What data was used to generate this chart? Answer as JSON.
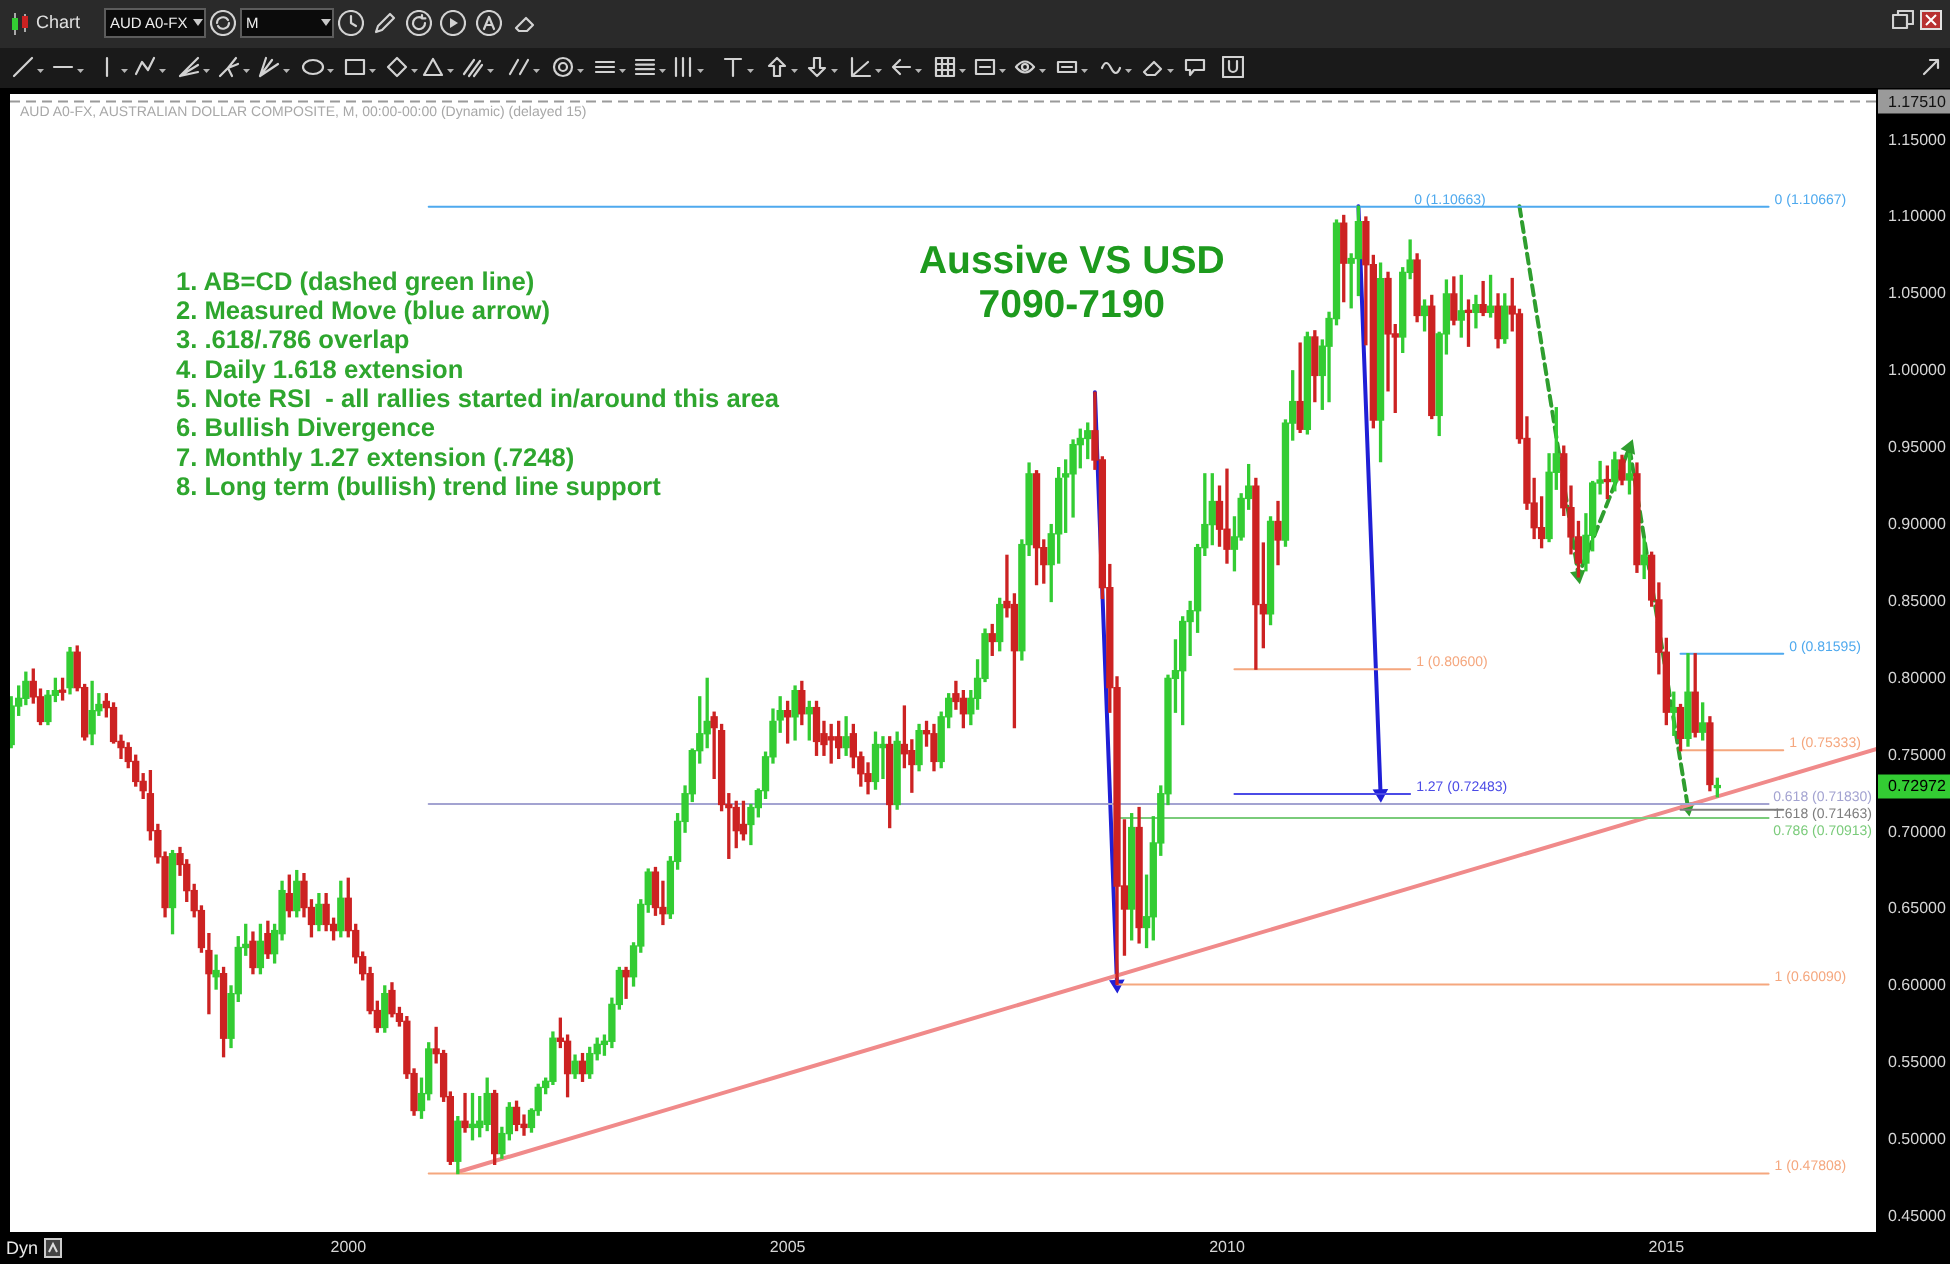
{
  "chart_data": {
    "type": "candlestick",
    "title": "Aussive VS USD",
    "subtitle": "7090-7190",
    "annotations": [
      "AUD A0-FX, AUSTRALIAN DOLLAR COMPOSITE, M, 00:00-00:00 (Dynamic) (delayed 15)",
      "1. AB=CD (dashed green line)",
      "2. Measured Move (blue arrow)",
      "3. .618/.786 overlap",
      "4. Daily 1.618 extension",
      "5. Note RSI  - all rallies started in/around this area",
      "6. Bullish Divergence",
      "7. Monthly 1.27 extension (.7248)",
      "8. Long term (bullish) trend line support",
      {
        "text": "0 (1.10663)",
        "x": "2012-02",
        "y": 1.10663
      },
      "Chart",
      "AUD A0-FX",
      "M",
      "Dyn"
    ],
    "x": [
      "1996-03",
      "1996-04",
      "1996-05",
      "1996-06",
      "1996-07",
      "1996-08",
      "1996-09",
      "1996-10",
      "1996-11",
      "1996-12",
      "1997-01",
      "1997-02",
      "1997-03",
      "1997-04",
      "1997-05",
      "1997-06",
      "1997-07",
      "1997-08",
      "1997-09",
      "1997-10",
      "1997-11",
      "1997-12",
      "1998-01",
      "1998-02",
      "1998-03",
      "1998-04",
      "1998-05",
      "1998-06",
      "1998-07",
      "1998-08",
      "1998-09",
      "1998-10",
      "1998-11",
      "1998-12",
      "1999-01",
      "1999-02",
      "1999-03",
      "1999-04",
      "1999-05",
      "1999-06",
      "1999-07",
      "1999-08",
      "1999-09",
      "1999-10",
      "1999-11",
      "1999-12",
      "2000-01",
      "2000-02",
      "2000-03",
      "2000-04",
      "2000-05",
      "2000-06",
      "2000-07",
      "2000-08",
      "2000-09",
      "2000-10",
      "2000-11",
      "2000-12",
      "2001-01",
      "2001-02",
      "2001-03",
      "2001-04",
      "2001-05",
      "2001-06",
      "2001-07",
      "2001-08",
      "2001-09",
      "2001-10",
      "2001-11",
      "2001-12",
      "2002-01",
      "2002-02",
      "2002-03",
      "2002-04",
      "2002-05",
      "2002-06",
      "2002-07",
      "2002-08",
      "2002-09",
      "2002-10",
      "2002-11",
      "2002-12",
      "2003-01",
      "2003-02",
      "2003-03",
      "2003-04",
      "2003-05",
      "2003-06",
      "2003-07",
      "2003-08",
      "2003-09",
      "2003-10",
      "2003-11",
      "2003-12",
      "2004-01",
      "2004-02",
      "2004-03",
      "2004-04",
      "2004-05",
      "2004-06",
      "2004-07",
      "2004-08",
      "2004-09",
      "2004-10",
      "2004-11",
      "2004-12",
      "2005-01",
      "2005-02",
      "2005-03",
      "2005-04",
      "2005-05",
      "2005-06",
      "2005-07",
      "2005-08",
      "2005-09",
      "2005-10",
      "2005-11",
      "2005-12",
      "2006-01",
      "2006-02",
      "2006-03",
      "2006-04",
      "2006-05",
      "2006-06",
      "2006-07",
      "2006-08",
      "2006-09",
      "2006-10",
      "2006-11",
      "2006-12",
      "2007-01",
      "2007-02",
      "2007-03",
      "2007-04",
      "2007-05",
      "2007-06",
      "2007-07",
      "2007-08",
      "2007-09",
      "2007-10",
      "2007-11",
      "2007-12",
      "2008-01",
      "2008-02",
      "2008-03",
      "2008-04",
      "2008-05",
      "2008-06",
      "2008-07",
      "2008-08",
      "2008-09",
      "2008-10",
      "2008-11",
      "2008-12",
      "2009-01",
      "2009-02",
      "2009-03",
      "2009-04",
      "2009-05",
      "2009-06",
      "2009-07",
      "2009-08",
      "2009-09",
      "2009-10",
      "2009-11",
      "2009-12",
      "2010-01",
      "2010-02",
      "2010-03",
      "2010-04",
      "2010-05",
      "2010-06",
      "2010-07",
      "2010-08",
      "2010-09",
      "2010-10",
      "2010-11",
      "2010-12",
      "2011-01",
      "2011-02",
      "2011-03",
      "2011-04",
      "2011-05",
      "2011-06",
      "2011-07",
      "2011-08",
      "2011-09",
      "2011-10",
      "2011-11",
      "2011-12",
      "2012-01",
      "2012-02",
      "2012-03",
      "2012-04",
      "2012-05",
      "2012-06",
      "2012-07",
      "2012-08",
      "2012-09",
      "2012-10",
      "2012-11",
      "2012-12",
      "2013-01",
      "2013-02",
      "2013-03",
      "2013-04",
      "2013-05",
      "2013-06",
      "2013-07",
      "2013-08",
      "2013-09",
      "2013-10",
      "2013-11",
      "2013-12",
      "2014-01",
      "2014-02",
      "2014-03",
      "2014-04",
      "2014-05",
      "2014-06",
      "2014-07",
      "2014-08",
      "2014-09",
      "2014-10",
      "2014-11",
      "2014-12",
      "2015-01",
      "2015-02",
      "2015-03",
      "2015-04",
      "2015-05",
      "2015-06",
      "2015-07",
      "2015-08"
    ],
    "ohlc": [
      [
        0.757,
        0.788,
        0.755,
        0.782
      ],
      [
        0.782,
        0.795,
        0.776,
        0.787
      ],
      [
        0.787,
        0.804,
        0.783,
        0.798
      ],
      [
        0.798,
        0.806,
        0.784,
        0.788
      ],
      [
        0.788,
        0.793,
        0.77,
        0.772
      ],
      [
        0.772,
        0.792,
        0.77,
        0.789
      ],
      [
        0.789,
        0.8,
        0.785,
        0.792
      ],
      [
        0.792,
        0.8,
        0.786,
        0.791
      ],
      [
        0.794,
        0.82,
        0.79,
        0.817
      ],
      [
        0.817,
        0.821,
        0.792,
        0.794
      ],
      [
        0.794,
        0.796,
        0.76,
        0.762
      ],
      [
        0.764,
        0.798,
        0.757,
        0.779
      ],
      [
        0.779,
        0.79,
        0.776,
        0.783
      ],
      [
        0.785,
        0.79,
        0.775,
        0.781
      ],
      [
        0.781,
        0.784,
        0.758,
        0.759
      ],
      [
        0.759,
        0.763,
        0.748,
        0.755
      ],
      [
        0.755,
        0.758,
        0.742,
        0.746
      ],
      [
        0.746,
        0.75,
        0.73,
        0.733
      ],
      [
        0.733,
        0.738,
        0.722,
        0.727
      ],
      [
        0.725,
        0.74,
        0.695,
        0.701
      ],
      [
        0.701,
        0.705,
        0.68,
        0.684
      ],
      [
        0.684,
        0.687,
        0.645,
        0.651
      ],
      [
        0.651,
        0.688,
        0.634,
        0.686
      ],
      [
        0.686,
        0.69,
        0.672,
        0.679
      ],
      [
        0.679,
        0.682,
        0.655,
        0.662
      ],
      [
        0.662,
        0.666,
        0.645,
        0.649
      ],
      [
        0.649,
        0.652,
        0.622,
        0.625
      ],
      [
        0.623,
        0.634,
        0.582,
        0.608
      ],
      [
        0.606,
        0.62,
        0.598,
        0.61
      ],
      [
        0.608,
        0.612,
        0.554,
        0.566
      ],
      [
        0.566,
        0.6,
        0.56,
        0.595
      ],
      [
        0.595,
        0.632,
        0.59,
        0.625
      ],
      [
        0.625,
        0.64,
        0.62,
        0.627
      ],
      [
        0.629,
        0.635,
        0.608,
        0.612
      ],
      [
        0.612,
        0.64,
        0.608,
        0.629
      ],
      [
        0.634,
        0.642,
        0.618,
        0.621
      ],
      [
        0.621,
        0.64,
        0.615,
        0.636
      ],
      [
        0.634,
        0.668,
        0.63,
        0.662
      ],
      [
        0.66,
        0.672,
        0.645,
        0.649
      ],
      [
        0.649,
        0.675,
        0.645,
        0.668
      ],
      [
        0.668,
        0.673,
        0.645,
        0.651
      ],
      [
        0.651,
        0.656,
        0.632,
        0.64
      ],
      [
        0.64,
        0.66,
        0.636,
        0.653
      ],
      [
        0.653,
        0.66,
        0.636,
        0.64
      ],
      [
        0.64,
        0.644,
        0.63,
        0.636
      ],
      [
        0.636,
        0.668,
        0.632,
        0.657
      ],
      [
        0.657,
        0.67,
        0.632,
        0.636
      ],
      [
        0.636,
        0.64,
        0.615,
        0.619
      ],
      [
        0.619,
        0.622,
        0.604,
        0.608
      ],
      [
        0.608,
        0.612,
        0.582,
        0.584
      ],
      [
        0.584,
        0.59,
        0.57,
        0.573
      ],
      [
        0.573,
        0.6,
        0.57,
        0.595
      ],
      [
        0.597,
        0.602,
        0.58,
        0.582
      ],
      [
        0.582,
        0.586,
        0.574,
        0.577
      ],
      [
        0.577,
        0.58,
        0.54,
        0.543
      ],
      [
        0.543,
        0.546,
        0.516,
        0.519
      ],
      [
        0.519,
        0.54,
        0.514,
        0.53
      ],
      [
        0.53,
        0.563,
        0.526,
        0.559
      ],
      [
        0.559,
        0.573,
        0.55,
        0.556
      ],
      [
        0.556,
        0.558,
        0.525,
        0.528
      ],
      [
        0.528,
        0.531,
        0.484,
        0.486
      ],
      [
        0.486,
        0.515,
        0.478,
        0.512
      ],
      [
        0.512,
        0.53,
        0.505,
        0.508
      ],
      [
        0.508,
        0.53,
        0.5,
        0.51
      ],
      [
        0.508,
        0.528,
        0.502,
        0.512
      ],
      [
        0.51,
        0.54,
        0.506,
        0.53
      ],
      [
        0.53,
        0.532,
        0.484,
        0.491
      ],
      [
        0.491,
        0.508,
        0.488,
        0.504
      ],
      [
        0.504,
        0.524,
        0.5,
        0.521
      ],
      [
        0.521,
        0.525,
        0.506,
        0.51
      ],
      [
        0.51,
        0.516,
        0.503,
        0.508
      ],
      [
        0.508,
        0.52,
        0.505,
        0.519
      ],
      [
        0.519,
        0.536,
        0.516,
        0.534
      ],
      [
        0.534,
        0.54,
        0.53,
        0.538
      ],
      [
        0.538,
        0.57,
        0.536,
        0.566
      ],
      [
        0.566,
        0.579,
        0.56,
        0.564
      ],
      [
        0.564,
        0.568,
        0.528,
        0.543
      ],
      [
        0.543,
        0.555,
        0.54,
        0.551
      ],
      [
        0.551,
        0.556,
        0.538,
        0.543
      ],
      [
        0.543,
        0.56,
        0.54,
        0.556
      ],
      [
        0.556,
        0.566,
        0.552,
        0.562
      ],
      [
        0.562,
        0.568,
        0.555,
        0.564
      ],
      [
        0.564,
        0.592,
        0.56,
        0.588
      ],
      [
        0.588,
        0.612,
        0.585,
        0.61
      ],
      [
        0.61,
        0.612,
        0.592,
        0.606
      ],
      [
        0.606,
        0.628,
        0.6,
        0.626
      ],
      [
        0.626,
        0.656,
        0.622,
        0.653
      ],
      [
        0.653,
        0.676,
        0.648,
        0.674
      ],
      [
        0.674,
        0.677,
        0.646,
        0.651
      ],
      [
        0.651,
        0.668,
        0.64,
        0.647
      ],
      [
        0.647,
        0.684,
        0.644,
        0.681
      ],
      [
        0.681,
        0.712,
        0.676,
        0.707
      ],
      [
        0.707,
        0.73,
        0.7,
        0.725
      ],
      [
        0.725,
        0.754,
        0.72,
        0.753
      ],
      [
        0.753,
        0.788,
        0.745,
        0.764
      ],
      [
        0.764,
        0.8,
        0.755,
        0.772
      ],
      [
        0.775,
        0.778,
        0.735,
        0.768
      ],
      [
        0.766,
        0.77,
        0.714,
        0.718
      ],
      [
        0.718,
        0.725,
        0.683,
        0.716
      ],
      [
        0.716,
        0.72,
        0.69,
        0.701
      ],
      [
        0.705,
        0.72,
        0.695,
        0.699
      ],
      [
        0.705,
        0.718,
        0.692,
        0.716
      ],
      [
        0.716,
        0.728,
        0.71,
        0.727
      ],
      [
        0.727,
        0.752,
        0.722,
        0.749
      ],
      [
        0.749,
        0.78,
        0.745,
        0.772
      ],
      [
        0.773,
        0.788,
        0.765,
        0.779
      ],
      [
        0.779,
        0.785,
        0.758,
        0.775
      ],
      [
        0.775,
        0.795,
        0.76,
        0.792
      ],
      [
        0.792,
        0.798,
        0.77,
        0.777
      ],
      [
        0.777,
        0.785,
        0.76,
        0.781
      ],
      [
        0.781,
        0.785,
        0.75,
        0.759
      ],
      [
        0.764,
        0.772,
        0.75,
        0.757
      ],
      [
        0.762,
        0.77,
        0.745,
        0.76
      ],
      [
        0.762,
        0.772,
        0.748,
        0.755
      ],
      [
        0.755,
        0.775,
        0.75,
        0.762
      ],
      [
        0.764,
        0.77,
        0.742,
        0.749
      ],
      [
        0.749,
        0.752,
        0.73,
        0.738
      ],
      [
        0.738,
        0.745,
        0.725,
        0.733
      ],
      [
        0.733,
        0.765,
        0.728,
        0.757
      ],
      [
        0.755,
        0.762,
        0.735,
        0.757
      ],
      [
        0.757,
        0.762,
        0.703,
        0.718
      ],
      [
        0.718,
        0.765,
        0.715,
        0.759
      ],
      [
        0.757,
        0.782,
        0.742,
        0.751
      ],
      [
        0.753,
        0.76,
        0.726,
        0.744
      ],
      [
        0.744,
        0.77,
        0.74,
        0.766
      ],
      [
        0.766,
        0.772,
        0.756,
        0.764
      ],
      [
        0.764,
        0.77,
        0.74,
        0.746
      ],
      [
        0.746,
        0.778,
        0.742,
        0.775
      ],
      [
        0.775,
        0.79,
        0.768,
        0.787
      ],
      [
        0.79,
        0.798,
        0.78,
        0.785
      ],
      [
        0.787,
        0.792,
        0.768,
        0.777
      ],
      [
        0.777,
        0.792,
        0.77,
        0.787
      ],
      [
        0.787,
        0.812,
        0.78,
        0.8
      ],
      [
        0.8,
        0.832,
        0.798,
        0.829
      ],
      [
        0.829,
        0.835,
        0.815,
        0.824
      ],
      [
        0.824,
        0.852,
        0.818,
        0.848
      ],
      [
        0.85,
        0.88,
        0.84,
        0.846
      ],
      [
        0.848,
        0.855,
        0.768,
        0.818
      ],
      [
        0.818,
        0.89,
        0.812,
        0.887
      ],
      [
        0.887,
        0.94,
        0.88,
        0.933
      ],
      [
        0.933,
        0.935,
        0.861,
        0.885
      ],
      [
        0.885,
        0.89,
        0.862,
        0.874
      ],
      [
        0.874,
        0.9,
        0.85,
        0.894
      ],
      [
        0.894,
        0.937,
        0.875,
        0.93
      ],
      [
        0.931,
        0.942,
        0.895,
        0.933
      ],
      [
        0.933,
        0.955,
        0.905,
        0.952
      ],
      [
        0.952,
        0.962,
        0.937,
        0.956
      ],
      [
        0.956,
        0.966,
        0.943,
        0.961
      ],
      [
        0.961,
        0.986,
        0.936,
        0.942
      ],
      [
        0.942,
        0.944,
        0.852,
        0.859
      ],
      [
        0.859,
        0.874,
        0.778,
        0.794
      ],
      [
        0.794,
        0.801,
        0.601,
        0.665
      ],
      [
        0.665,
        0.708,
        0.62,
        0.65
      ],
      [
        0.65,
        0.712,
        0.63,
        0.703
      ],
      [
        0.703,
        0.716,
        0.628,
        0.638
      ],
      [
        0.638,
        0.672,
        0.625,
        0.645
      ],
      [
        0.645,
        0.71,
        0.63,
        0.693
      ],
      [
        0.693,
        0.73,
        0.685,
        0.725
      ],
      [
        0.725,
        0.802,
        0.718,
        0.8
      ],
      [
        0.8,
        0.825,
        0.778,
        0.805
      ],
      [
        0.805,
        0.84,
        0.77,
        0.837
      ],
      [
        0.837,
        0.85,
        0.815,
        0.844
      ],
      [
        0.844,
        0.887,
        0.83,
        0.885
      ],
      [
        0.885,
        0.933,
        0.88,
        0.9
      ],
      [
        0.9,
        0.933,
        0.887,
        0.915
      ],
      [
        0.915,
        0.925,
        0.886,
        0.897
      ],
      [
        0.897,
        0.936,
        0.875,
        0.884
      ],
      [
        0.884,
        0.905,
        0.87,
        0.892
      ],
      [
        0.892,
        0.92,
        0.89,
        0.917
      ],
      [
        0.917,
        0.939,
        0.91,
        0.925
      ],
      [
        0.925,
        0.93,
        0.806,
        0.848
      ],
      [
        0.848,
        0.888,
        0.82,
        0.842
      ],
      [
        0.842,
        0.905,
        0.835,
        0.902
      ],
      [
        0.902,
        0.915,
        0.874,
        0.89
      ],
      [
        0.89,
        0.968,
        0.886,
        0.966
      ],
      [
        0.966,
        1.0,
        0.955,
        0.98
      ],
      [
        0.98,
        1.018,
        0.96,
        0.962
      ],
      [
        0.962,
        1.025,
        0.959,
        1.022
      ],
      [
        1.022,
        1.026,
        0.98,
        0.997
      ],
      [
        0.997,
        1.02,
        0.975,
        1.016
      ],
      [
        1.016,
        1.038,
        0.98,
        1.034
      ],
      [
        1.034,
        1.098,
        1.03,
        1.096
      ],
      [
        1.096,
        1.101,
        1.045,
        1.07
      ],
      [
        1.07,
        1.076,
        1.041,
        1.073
      ],
      [
        1.073,
        1.107,
        1.049,
        1.097
      ],
      [
        1.097,
        1.1,
        1.017,
        1.069
      ],
      [
        1.069,
        1.075,
        0.963,
        0.968
      ],
      [
        0.968,
        1.07,
        0.941,
        1.06
      ],
      [
        1.06,
        1.064,
        0.987,
        1.024
      ],
      [
        1.024,
        1.03,
        0.973,
        1.022
      ],
      [
        1.022,
        1.067,
        1.012,
        1.064
      ],
      [
        1.064,
        1.085,
        1.06,
        1.072
      ],
      [
        1.072,
        1.076,
        1.032,
        1.036
      ],
      [
        1.036,
        1.046,
        1.026,
        1.042
      ],
      [
        1.042,
        1.049,
        0.969,
        0.971
      ],
      [
        0.971,
        1.025,
        0.958,
        1.024
      ],
      [
        1.024,
        1.059,
        1.011,
        1.05
      ],
      [
        1.05,
        1.061,
        1.03,
        1.033
      ],
      [
        1.033,
        1.062,
        1.022,
        1.039
      ],
      [
        1.039,
        1.046,
        1.016,
        1.038
      ],
      [
        1.038,
        1.049,
        1.028,
        1.043
      ],
      [
        1.043,
        1.058,
        1.036,
        1.038
      ],
      [
        1.038,
        1.062,
        1.035,
        1.042
      ],
      [
        1.042,
        1.05,
        1.015,
        1.021
      ],
      [
        1.021,
        1.05,
        1.018,
        1.042
      ],
      [
        1.042,
        1.06,
        1.026,
        1.037
      ],
      [
        1.037,
        1.04,
        0.953,
        0.956
      ],
      [
        0.956,
        0.97,
        0.91,
        0.914
      ],
      [
        0.914,
        0.93,
        0.891,
        0.898
      ],
      [
        0.898,
        0.918,
        0.885,
        0.891
      ],
      [
        0.891,
        0.946,
        0.889,
        0.934
      ],
      [
        0.934,
        0.976,
        0.923,
        0.946
      ],
      [
        0.946,
        0.951,
        0.906,
        0.911
      ],
      [
        0.911,
        0.925,
        0.881,
        0.892
      ],
      [
        0.892,
        0.902,
        0.866,
        0.875
      ],
      [
        0.875,
        0.907,
        0.87,
        0.893
      ],
      [
        0.893,
        0.928,
        0.883,
        0.927
      ],
      [
        0.927,
        0.941,
        0.92,
        0.929
      ],
      [
        0.929,
        0.938,
        0.917,
        0.928
      ],
      [
        0.928,
        0.947,
        0.922,
        0.942
      ],
      [
        0.942,
        0.945,
        0.926,
        0.929
      ],
      [
        0.929,
        0.946,
        0.92,
        0.933
      ],
      [
        0.933,
        0.94,
        0.869,
        0.874
      ],
      [
        0.874,
        0.891,
        0.865,
        0.88
      ],
      [
        0.88,
        0.882,
        0.847,
        0.851
      ],
      [
        0.851,
        0.862,
        0.803,
        0.817
      ],
      [
        0.817,
        0.826,
        0.77,
        0.778
      ],
      [
        0.778,
        0.791,
        0.763,
        0.781
      ],
      [
        0.781,
        0.783,
        0.753,
        0.761
      ],
      [
        0.761,
        0.816,
        0.756,
        0.791
      ],
      [
        0.791,
        0.816,
        0.762,
        0.765
      ],
      [
        0.765,
        0.784,
        0.76,
        0.771
      ],
      [
        0.771,
        0.775,
        0.727,
        0.731
      ],
      [
        0.729,
        0.735,
        0.723,
        0.72972
      ]
    ],
    "colors": [
      "#33cc33",
      "#33cc33",
      "#33cc33",
      "#cc2222",
      "#cc2222",
      "#33cc33",
      "#33cc33",
      "#cc2222",
      "#33cc33",
      "#cc2222",
      "#cc2222",
      "#33cc33",
      "#33cc33",
      "#cc2222",
      "#cc2222",
      "#cc2222",
      "#cc2222",
      "#cc2222",
      "#cc2222",
      "#cc2222",
      "#cc2222",
      "#cc2222",
      "#33cc33",
      "#cc2222",
      "#cc2222",
      "#cc2222",
      "#cc2222",
      "#cc2222",
      "#33cc33",
      "#cc2222",
      "#33cc33",
      "#33cc33",
      "#33cc33",
      "#cc2222",
      "#33cc33",
      "#cc2222",
      "#33cc33",
      "#33cc33",
      "#cc2222",
      "#33cc33",
      "#cc2222",
      "#cc2222",
      "#33cc33",
      "#cc2222",
      "#cc2222",
      "#33cc33",
      "#cc2222",
      "#cc2222",
      "#cc2222",
      "#cc2222",
      "#cc2222",
      "#33cc33",
      "#cc2222",
      "#cc2222",
      "#cc2222",
      "#cc2222",
      "#33cc33",
      "#33cc33",
      "#cc2222",
      "#cc2222",
      "#cc2222",
      "#33cc33",
      "#cc2222",
      "#33cc33",
      "#33cc33",
      "#33cc33",
      "#cc2222",
      "#33cc33",
      "#33cc33",
      "#cc2222",
      "#cc2222",
      "#33cc33",
      "#33cc33",
      "#33cc33",
      "#33cc33",
      "#cc2222",
      "#cc2222",
      "#33cc33",
      "#cc2222",
      "#33cc33",
      "#33cc33",
      "#33cc33",
      "#33cc33",
      "#33cc33",
      "#cc2222",
      "#33cc33",
      "#33cc33",
      "#33cc33",
      "#cc2222",
      "#cc2222",
      "#33cc33",
      "#33cc33",
      "#33cc33",
      "#33cc33",
      "#33cc33",
      "#33cc33",
      "#cc2222",
      "#cc2222",
      "#cc2222",
      "#cc2222",
      "#cc2222",
      "#33cc33",
      "#33cc33",
      "#33cc33",
      "#33cc33",
      "#33cc33",
      "#cc2222",
      "#33cc33",
      "#cc2222",
      "#33cc33",
      "#cc2222",
      "#cc2222",
      "#cc2222",
      "#cc2222",
      "#33cc33",
      "#cc2222",
      "#cc2222",
      "#cc2222",
      "#33cc33",
      "#33cc33",
      "#cc2222",
      "#33cc33",
      "#cc2222",
      "#cc2222",
      "#33cc33",
      "#cc2222",
      "#cc2222",
      "#33cc33",
      "#33cc33",
      "#cc2222",
      "#cc2222",
      "#33cc33",
      "#33cc33",
      "#33cc33",
      "#cc2222",
      "#33cc33",
      "#cc2222",
      "#cc2222",
      "#33cc33",
      "#33cc33",
      "#cc2222",
      "#cc2222",
      "#33cc33",
      "#33cc33",
      "#33cc33",
      "#33cc33",
      "#33cc33",
      "#33cc33",
      "#cc2222",
      "#cc2222",
      "#cc2222",
      "#cc2222",
      "#cc2222",
      "#33cc33",
      "#cc2222",
      "#33cc33",
      "#33cc33",
      "#33cc33",
      "#33cc33",
      "#33cc33",
      "#33cc33",
      "#33cc33",
      "#33cc33",
      "#33cc33",
      "#33cc33",
      "#cc2222",
      "#cc2222",
      "#33cc33",
      "#33cc33",
      "#33cc33",
      "#cc2222",
      "#cc2222",
      "#33cc33",
      "#cc2222",
      "#33cc33",
      "#33cc33",
      "#cc2222",
      "#33cc33",
      "#cc2222",
      "#33cc33",
      "#33cc33",
      "#33cc33",
      "#cc2222",
      "#33cc33",
      "#33cc33",
      "#cc2222",
      "#cc2222",
      "#33cc33",
      "#cc2222",
      "#cc2222",
      "#33cc33",
      "#33cc33",
      "#cc2222",
      "#33cc33",
      "#cc2222",
      "#33cc33",
      "#33cc33",
      "#cc2222",
      "#33cc33",
      "#cc2222",
      "#33cc33",
      "#cc2222",
      "#33cc33",
      "#cc2222",
      "#33cc33",
      "#cc2222",
      "#cc2222",
      "#cc2222",
      "#cc2222",
      "#cc2222",
      "#33cc33",
      "#33cc33",
      "#cc2222",
      "#cc2222",
      "#cc2222",
      "#33cc33",
      "#33cc33",
      "#33cc33",
      "#cc2222",
      "#33cc33",
      "#cc2222",
      "#33cc33",
      "#cc2222",
      "#33cc33",
      "#cc2222",
      "#cc2222",
      "#cc2222",
      "#33cc33",
      "#cc2222",
      "#33cc33",
      "#cc2222",
      "#33cc33",
      "#cc2222",
      "#33cc33"
    ],
    "series": [
      {
        "type": "line",
        "name": "0 (1.10667)",
        "x": [
          "2000-12",
          "2016-03"
        ],
        "values": [
          1.10667,
          1.10667
        ],
        "color": "#4ea9ee"
      },
      {
        "type": "line",
        "name": "0.618 (0.71830)",
        "x": [
          "2000-12",
          "2016-03"
        ],
        "values": [
          0.7183,
          0.7183
        ],
        "color": "#a3a3d1"
      },
      {
        "type": "line",
        "name": "1 (0.47808)",
        "x": [
          "2000-12",
          "2016-03"
        ],
        "values": [
          0.47808,
          0.47808
        ],
        "color": "#f5a77e"
      },
      {
        "type": "line",
        "name": "0.786 (0.70913)",
        "x": [
          "2008-10",
          "2016-03"
        ],
        "values": [
          0.70913,
          0.70913
        ],
        "color": "#7acb7a"
      },
      {
        "type": "line",
        "name": "1 (0.60090)",
        "x": [
          "2008-10",
          "2016-03"
        ],
        "values": [
          0.6009,
          0.6009
        ],
        "color": "#f5a77e"
      },
      {
        "type": "line",
        "name": "1 (0.80600)",
        "x": [
          "2010-02",
          "2012-02"
        ],
        "values": [
          0.806,
          0.806
        ],
        "color": "#f5a77e"
      },
      {
        "type": "line",
        "name": "1.27 (0.72483)",
        "x": [
          "2010-02",
          "2012-02"
        ],
        "values": [
          0.72483,
          0.72483
        ],
        "color": "#4b4be6"
      },
      {
        "type": "line",
        "name": "0 (0.81595)",
        "x": [
          "2015-03",
          "2016-05"
        ],
        "values": [
          0.81595,
          0.81595
        ],
        "color": "#4ea9ee"
      },
      {
        "type": "line",
        "name": "1 (0.75333)",
        "x": [
          "2015-03",
          "2016-05"
        ],
        "values": [
          0.75333,
          0.75333
        ],
        "color": "#f5a77e"
      },
      {
        "type": "line",
        "name": "1.618 (0.71463)",
        "x": [
          "2015-03",
          "2016-05"
        ],
        "values": [
          0.71463,
          0.71463
        ],
        "color": "#7d7d7d"
      },
      {
        "type": "line",
        "x": [
          "2001-04",
          "2017-05-22"
        ],
        "values": [
          0.479,
          0.754
        ],
        "color": "#f08a8a"
      },
      {
        "type": "line",
        "x": [
          "2008-07",
          "2008-10"
        ],
        "values": [
          0.986,
          0.601
        ],
        "color": "#1f1fd6",
        "marker": "triangle"
      },
      {
        "type": "line",
        "x": [
          "2011-07",
          "2011-10"
        ],
        "values": [
          1.107,
          0.725
        ],
        "color": "#1f1fd6",
        "marker": "triangle"
      },
      {
        "type": "line",
        "x": [
          "2013-05",
          "2014-01",
          "2014-08",
          "2015-04"
        ],
        "values": [
          1.107,
          0.867,
          0.95,
          0.716
        ],
        "color": "#2f9e2f",
        "line_style": "dashed",
        "marker": "triangle"
      }
    ],
    "ref_lines": [
      {
        "axis": "y",
        "value": 1.1751,
        "label": "1.17510",
        "color": "#9a9a9a",
        "line_style": "dashed"
      }
    ],
    "xlim": [
      "1996-02-25",
      "2017-05-22"
    ],
    "xticks": [
      "2000",
      "2005",
      "2010",
      "2015"
    ],
    "ylim": [
      0.44,
      1.18
    ],
    "yticks": [
      {
        "value": 0.45,
        "label": "0.45000"
      },
      {
        "value": 0.5,
        "label": "0.50000"
      },
      {
        "value": 0.55,
        "label": "0.55000"
      },
      {
        "value": 0.6,
        "label": "0.60000"
      },
      {
        "value": 0.65,
        "label": "0.65000"
      },
      {
        "value": 0.7,
        "label": "0.70000"
      },
      {
        "value": 0.75,
        "label": "0.75000"
      },
      {
        "value": 0.8,
        "label": "0.80000"
      },
      {
        "value": 0.85,
        "label": "0.85000"
      },
      {
        "value": 0.9,
        "label": "0.90000"
      },
      {
        "value": 0.95,
        "label": "0.95000"
      },
      {
        "value": 1.0,
        "label": "1.00000"
      },
      {
        "value": 1.05,
        "label": "1.05000"
      },
      {
        "value": 1.1,
        "label": "1.10000"
      },
      {
        "value": 1.15,
        "label": "1.15000"
      },
      {
        "value": 0.72972,
        "label": "0.72972"
      }
    ],
    "marker": "none"
  }
}
